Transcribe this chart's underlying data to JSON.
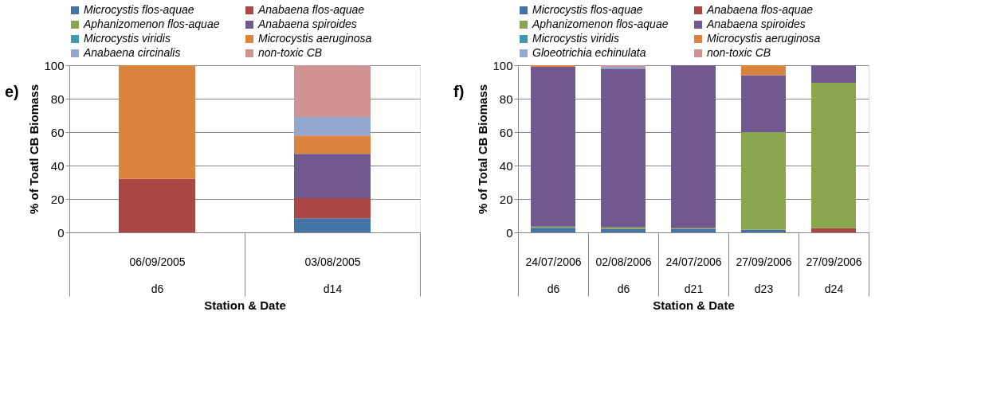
{
  "chart_data": [
    {
      "type": "bar",
      "title": "e)",
      "stacked": true,
      "xlabel": "Station & Date",
      "ylabel": "% of Toatl CB Biomass",
      "categories": [
        "06/09/2005\nd6",
        "03/08/2005\nd14"
      ],
      "ylim": [
        0,
        100
      ],
      "yticks": [
        0,
        20,
        40,
        60,
        80,
        100
      ],
      "grid": "y",
      "legend": "top",
      "series": [
        {
          "name": "Microcystis flos-aquae",
          "color": "#4572a7",
          "values": [
            null,
            8.5
          ]
        },
        {
          "name": "Anabaena flos-aquae",
          "color": "#aa4643",
          "values": [
            32,
            12
          ]
        },
        {
          "name": "Aphanizomenon flos-aquae",
          "color": "#89a54e",
          "values": [
            null,
            null
          ]
        },
        {
          "name": "Anabaena spiroides",
          "color": "#71588f",
          "values": [
            null,
            26.5
          ]
        },
        {
          "name": "Microcystis viridis",
          "color": "#4198af",
          "values": [
            null,
            null
          ]
        },
        {
          "name": "Microcystis aeruginosa",
          "color": "#db843d",
          "values": [
            68,
            11
          ]
        },
        {
          "name": "Anabaena circinalis",
          "color": "#93a9cf",
          "values": [
            null,
            11
          ]
        },
        {
          "name": "non-toxic CB",
          "color": "#d19392",
          "values": [
            null,
            31
          ]
        }
      ]
    },
    {
      "type": "bar",
      "title": "f)",
      "stacked": true,
      "xlabel": "Station & Date",
      "ylabel": "% of Total CB Biomass",
      "categories": [
        "24/07/2006\nd6",
        "02/08/2006\nd6",
        "24/07/2006\nd21",
        "27/09/2006\nd23",
        "27/09/2006\nd24"
      ],
      "ylim": [
        0,
        100
      ],
      "yticks": [
        0,
        20,
        40,
        60,
        80,
        100
      ],
      "grid": "y",
      "legend": "top",
      "series": [
        {
          "name": "Microcystis flos-aquae",
          "color": "#4572a7",
          "values": [
            2.7,
            2,
            2,
            1.5,
            null
          ]
        },
        {
          "name": "Anabaena flos-aquae",
          "color": "#aa4643",
          "values": [
            null,
            null,
            null,
            null,
            2.5
          ]
        },
        {
          "name": "Aphanizomenon flos-aquae",
          "color": "#89a54e",
          "values": [
            0.7,
            1,
            0.5,
            58.5,
            87
          ]
        },
        {
          "name": "Anabaena spiroides",
          "color": "#71588f",
          "values": [
            95.6,
            95,
            97.5,
            34,
            10.5
          ]
        },
        {
          "name": "Microcystis viridis",
          "color": "#4198af",
          "values": [
            null,
            null,
            null,
            null,
            null
          ]
        },
        {
          "name": "Microcystis aeruginosa",
          "color": "#db843d",
          "values": [
            1,
            null,
            null,
            6,
            null
          ]
        },
        {
          "name": "Gloeotrichia echinulata",
          "color": "#93a9cf",
          "values": [
            null,
            1,
            null,
            null,
            null
          ]
        },
        {
          "name": "non-toxic CB",
          "color": "#d19392",
          "values": [
            null,
            1,
            null,
            null,
            null
          ]
        }
      ]
    }
  ]
}
